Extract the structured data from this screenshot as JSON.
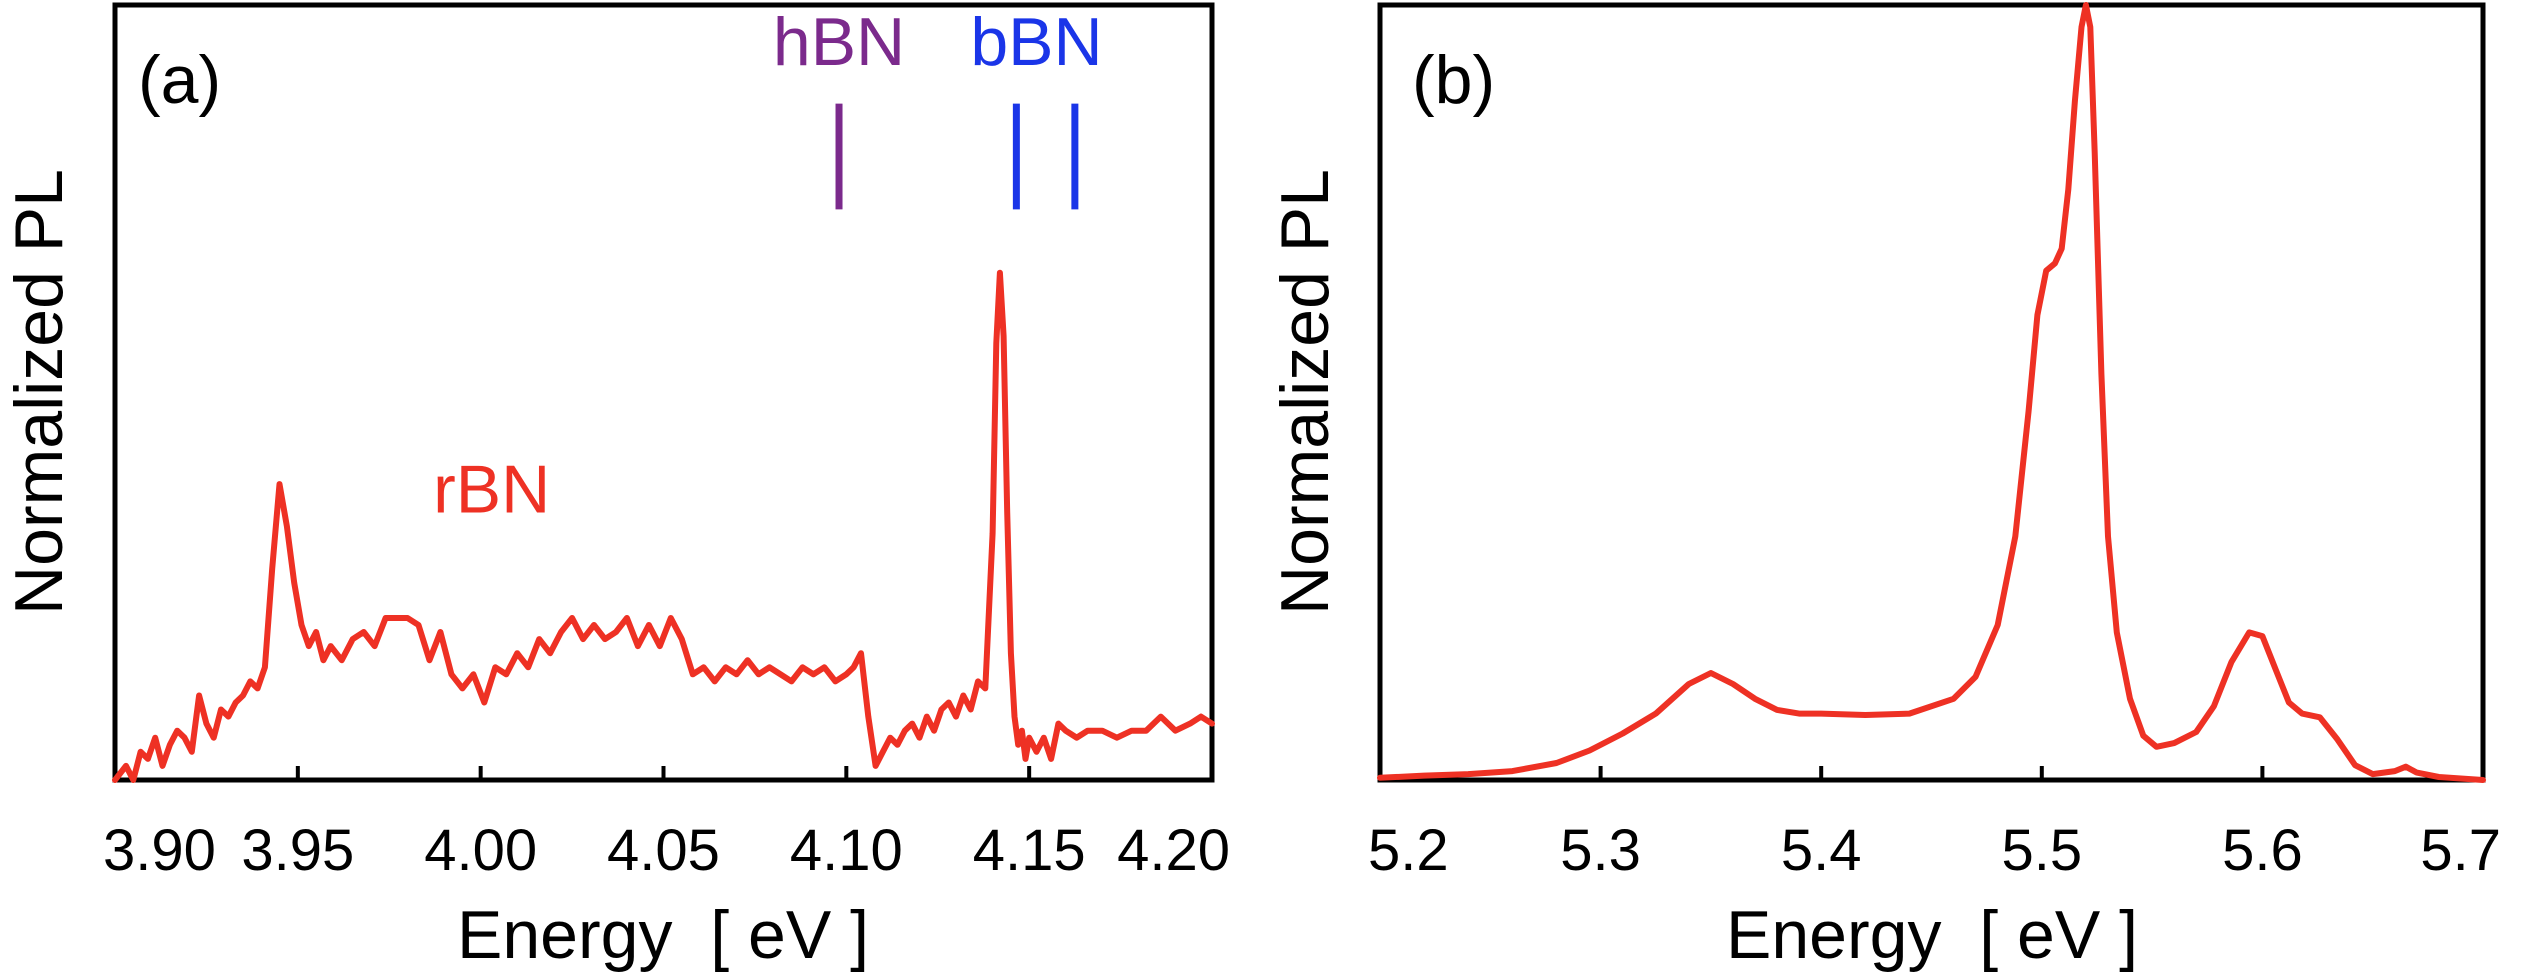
{
  "colors": {
    "curve": "#ee3124",
    "hbn_marker": "#7b2a8c",
    "bbn_marker": "#1a35e8",
    "axis": "#000000"
  },
  "chart_data": [
    {
      "panel_label": "(a)",
      "type": "line",
      "xlabel": "Energy  [ eV ]",
      "ylabel": "Normalized PL",
      "xlim": [
        3.9,
        4.2
      ],
      "ylim": [
        0,
        1.1
      ],
      "y_ticks_labeled": false,
      "xticks": [
        3.9,
        3.95,
        4.0,
        4.05,
        4.1,
        4.15,
        4.2
      ],
      "xtick_labels": [
        "3.90",
        "3.95",
        "4.00",
        "4.05",
        "4.10",
        "4.15",
        "4.20"
      ],
      "series": [
        {
          "name": "rBN",
          "x": [
            3.9,
            3.903,
            3.905,
            3.907,
            3.909,
            3.911,
            3.913,
            3.915,
            3.917,
            3.919,
            3.921,
            3.923,
            3.925,
            3.927,
            3.929,
            3.931,
            3.933,
            3.935,
            3.937,
            3.939,
            3.941,
            3.943,
            3.945,
            3.947,
            3.949,
            3.951,
            3.953,
            3.955,
            3.957,
            3.959,
            3.962,
            3.965,
            3.968,
            3.971,
            3.974,
            3.977,
            3.98,
            3.983,
            3.986,
            3.989,
            3.992,
            3.995,
            3.998,
            4.001,
            4.004,
            4.007,
            4.01,
            4.013,
            4.016,
            4.019,
            4.022,
            4.025,
            4.028,
            4.031,
            4.034,
            4.037,
            4.04,
            4.043,
            4.046,
            4.049,
            4.052,
            4.055,
            4.058,
            4.061,
            4.064,
            4.067,
            4.07,
            4.073,
            4.076,
            4.079,
            4.082,
            4.085,
            4.088,
            4.091,
            4.094,
            4.097,
            4.1,
            4.102,
            4.104,
            4.106,
            4.108,
            4.11,
            4.112,
            4.114,
            4.116,
            4.118,
            4.12,
            4.122,
            4.124,
            4.126,
            4.128,
            4.13,
            4.132,
            4.134,
            4.136,
            4.138,
            4.14,
            4.141,
            4.142,
            4.143,
            4.144,
            4.145,
            4.146,
            4.147,
            4.148,
            4.149,
            4.15,
            4.152,
            4.154,
            4.156,
            4.158,
            4.16,
            4.163,
            4.166,
            4.17,
            4.174,
            4.178,
            4.182,
            4.186,
            4.19,
            4.194,
            4.197,
            4.2
          ],
          "y": [
            0.0,
            0.02,
            0.0,
            0.04,
            0.03,
            0.06,
            0.02,
            0.05,
            0.07,
            0.06,
            0.04,
            0.12,
            0.08,
            0.06,
            0.1,
            0.09,
            0.11,
            0.12,
            0.14,
            0.13,
            0.16,
            0.3,
            0.42,
            0.36,
            0.28,
            0.22,
            0.19,
            0.21,
            0.17,
            0.19,
            0.17,
            0.2,
            0.21,
            0.19,
            0.23,
            0.23,
            0.23,
            0.22,
            0.17,
            0.21,
            0.15,
            0.13,
            0.15,
            0.11,
            0.16,
            0.15,
            0.18,
            0.16,
            0.2,
            0.18,
            0.21,
            0.23,
            0.2,
            0.22,
            0.2,
            0.21,
            0.23,
            0.19,
            0.22,
            0.19,
            0.23,
            0.2,
            0.15,
            0.16,
            0.14,
            0.16,
            0.15,
            0.17,
            0.15,
            0.16,
            0.15,
            0.14,
            0.16,
            0.15,
            0.16,
            0.14,
            0.15,
            0.16,
            0.18,
            0.09,
            0.02,
            0.04,
            0.06,
            0.05,
            0.07,
            0.08,
            0.06,
            0.09,
            0.07,
            0.1,
            0.11,
            0.09,
            0.12,
            0.1,
            0.14,
            0.13,
            0.35,
            0.62,
            0.72,
            0.63,
            0.38,
            0.18,
            0.09,
            0.05,
            0.07,
            0.03,
            0.06,
            0.04,
            0.06,
            0.03,
            0.08,
            0.07,
            0.06,
            0.07,
            0.07,
            0.06,
            0.07,
            0.07,
            0.09,
            0.07,
            0.08,
            0.09,
            0.08
          ]
        }
      ],
      "annotations": [
        {
          "text": "rBN",
          "x": 4.003,
          "y": 0.38,
          "color_key": "curve"
        },
        {
          "text": "hBN",
          "x": 4.098,
          "y": 1.015,
          "color_key": "hbn_marker"
        },
        {
          "text": "bBN",
          "x": 4.152,
          "y": 1.015,
          "color_key": "bbn_marker"
        }
      ],
      "markers": [
        {
          "group": "hBN",
          "x": 4.098,
          "y_from": 0.81,
          "y_to": 0.96,
          "color_key": "hbn_marker"
        },
        {
          "group": "bBN",
          "x": 4.1465,
          "y_from": 0.81,
          "y_to": 0.96,
          "color_key": "bbn_marker"
        },
        {
          "group": "bBN",
          "x": 4.1625,
          "y_from": 0.81,
          "y_to": 0.96,
          "color_key": "bbn_marker"
        }
      ]
    },
    {
      "panel_label": "(b)",
      "type": "line",
      "xlabel": "Energy  [ eV ]",
      "ylabel": "Normalized PL",
      "xlim": [
        5.2,
        5.7
      ],
      "ylim": [
        0,
        1.05
      ],
      "y_ticks_labeled": false,
      "xticks": [
        5.2,
        5.3,
        5.4,
        5.5,
        5.6,
        5.7
      ],
      "xtick_labels": [
        "5.2",
        "5.3",
        "5.4",
        "5.5",
        "5.6",
        "5.7"
      ],
      "series": [
        {
          "name": "PL",
          "x": [
            5.2,
            5.22,
            5.24,
            5.26,
            5.28,
            5.295,
            5.31,
            5.325,
            5.34,
            5.35,
            5.36,
            5.37,
            5.38,
            5.39,
            5.4,
            5.42,
            5.44,
            5.46,
            5.47,
            5.48,
            5.488,
            5.494,
            5.498,
            5.502,
            5.506,
            5.509,
            5.512,
            5.515,
            5.518,
            5.52,
            5.522,
            5.524,
            5.527,
            5.53,
            5.534,
            5.54,
            5.546,
            5.552,
            5.56,
            5.57,
            5.578,
            5.586,
            5.594,
            5.6,
            5.606,
            5.612,
            5.618,
            5.626,
            5.634,
            5.642,
            5.65,
            5.66,
            5.665,
            5.67,
            5.68,
            5.69,
            5.7
          ],
          "y": [
            0.003,
            0.006,
            0.008,
            0.012,
            0.023,
            0.04,
            0.063,
            0.09,
            0.13,
            0.145,
            0.13,
            0.11,
            0.095,
            0.09,
            0.09,
            0.088,
            0.09,
            0.11,
            0.14,
            0.21,
            0.33,
            0.5,
            0.63,
            0.69,
            0.7,
            0.72,
            0.8,
            0.92,
            1.02,
            1.05,
            1.02,
            0.85,
            0.55,
            0.33,
            0.2,
            0.11,
            0.06,
            0.045,
            0.05,
            0.065,
            0.1,
            0.16,
            0.2,
            0.195,
            0.15,
            0.105,
            0.09,
            0.085,
            0.055,
            0.02,
            0.008,
            0.012,
            0.018,
            0.01,
            0.004,
            0.002,
            0.0
          ]
        }
      ],
      "annotations": [],
      "markers": []
    }
  ]
}
